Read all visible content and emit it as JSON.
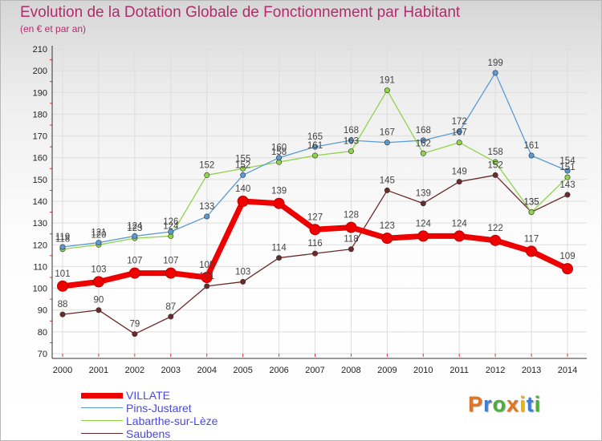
{
  "header": {
    "title": "Evolution de la Dotation Globale de Fonctionnement par Habitant",
    "subtitle": "(en € et par an)"
  },
  "colors": {
    "VILLATE": "#ee0000",
    "Pins-Justaret": "#5b9bd5",
    "Labarthe-sur-Lèze": "#8fd44a",
    "Saubens": "#6b2a2a",
    "grid": "#dddddd",
    "axis_text": "#222222",
    "legend_text": "#4a4ae0"
  },
  "chart_data": {
    "type": "line",
    "title": "Evolution de la Dotation Globale de Fonctionnement par Habitant",
    "subtitle": "(en € et par an)",
    "xlabel": "",
    "ylabel": "",
    "x": [
      2000,
      2001,
      2002,
      2003,
      2004,
      2005,
      2006,
      2007,
      2008,
      2009,
      2010,
      2011,
      2012,
      2013,
      2014
    ],
    "ylim": [
      70,
      210
    ],
    "yticks": [
      70,
      80,
      90,
      100,
      110,
      120,
      130,
      140,
      150,
      160,
      170,
      180,
      190,
      200,
      210
    ],
    "grid": true,
    "legend_position": "bottom-left",
    "series": [
      {
        "name": "Saubens",
        "values": [
          88,
          90,
          79,
          87,
          101,
          103,
          114,
          116,
          118,
          145,
          139,
          149,
          152,
          135,
          143
        ]
      },
      {
        "name": "Labarthe-sur-Lèze",
        "values": [
          118,
          120,
          123,
          124,
          152,
          155,
          158,
          161,
          163,
          191,
          162,
          167,
          158,
          135,
          151
        ]
      },
      {
        "name": "Pins-Justaret",
        "values": [
          119,
          121,
          124,
          126,
          133,
          152,
          160,
          165,
          168,
          167,
          168,
          172,
          199,
          161,
          154
        ]
      },
      {
        "name": "VILLATE",
        "values": [
          101,
          103,
          107,
          107,
          105,
          140,
          139,
          127,
          128,
          123,
          124,
          124,
          122,
          117,
          109
        ]
      }
    ]
  },
  "legend": {
    "items": [
      "VILLATE",
      "Pins-Justaret",
      "Labarthe-sur-Lèze",
      "Saubens"
    ]
  },
  "logo": {
    "letters": [
      "P",
      "r",
      "o",
      "x",
      "i",
      "t",
      "i"
    ],
    "colors": [
      "#e8731a",
      "#3a7fd0",
      "#4caf3a",
      "#e8731a",
      "#f2b400",
      "#3a7fd0",
      "#4caf3a"
    ]
  }
}
